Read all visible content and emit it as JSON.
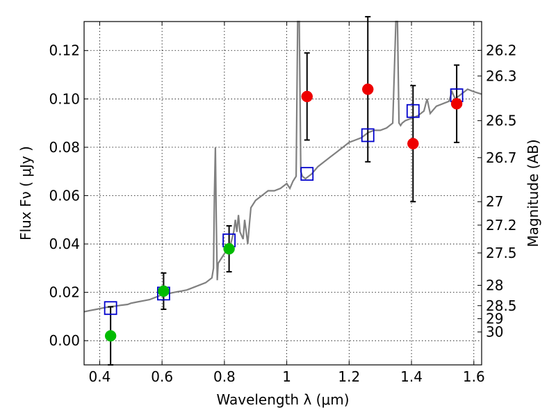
{
  "chart_data": {
    "type": "scatter",
    "xlabel": "Wavelength  λ (μm)",
    "ylabel": "Flux  Fν  ( μJy )",
    "ylabel_right": "Magnitude (AB)",
    "xlim": [
      0.35,
      1.625
    ],
    "ylim": [
      -0.01,
      0.132
    ],
    "grid": true,
    "x_ticks": [
      0.4,
      0.6,
      0.8,
      1.0,
      1.2,
      1.4,
      1.6
    ],
    "x_tick_labels": [
      "0.4",
      "0.6",
      "0.8",
      "1",
      "1.2",
      "1.4",
      "1.6"
    ],
    "y_ticks": [
      0.0,
      0.02,
      0.04,
      0.06,
      0.08,
      0.1,
      0.12
    ],
    "y_tick_labels": [
      "0.00",
      "0.02",
      "0.04",
      "0.06",
      "0.08",
      "0.10",
      "0.12"
    ],
    "right_ticks": [
      {
        "label": "26.2",
        "flux": 0.1201
      },
      {
        "label": "26.3",
        "flux": 0.1095
      },
      {
        "label": "26.5",
        "flux": 0.091
      },
      {
        "label": "26.7",
        "flux": 0.0757
      },
      {
        "label": "27",
        "flux": 0.0575
      },
      {
        "label": "27.2",
        "flux": 0.0478
      },
      {
        "label": "27.5",
        "flux": 0.0363
      },
      {
        "label": "28",
        "flux": 0.0229
      },
      {
        "label": "28.5",
        "flux": 0.0145
      },
      {
        "label": "29",
        "flux": 0.0091
      },
      {
        "label": "30",
        "flux": 0.0036
      }
    ],
    "series": [
      {
        "kind": "spectrum",
        "color": "#808080",
        "x": [
          0.35,
          0.37,
          0.39,
          0.41,
          0.43,
          0.45,
          0.47,
          0.49,
          0.5,
          0.52,
          0.54,
          0.56,
          0.58,
          0.6,
          0.62,
          0.64,
          0.66,
          0.68,
          0.7,
          0.72,
          0.74,
          0.76,
          0.765,
          0.768,
          0.771,
          0.774,
          0.777,
          0.78,
          0.79,
          0.8,
          0.81,
          0.82,
          0.83,
          0.835,
          0.84,
          0.845,
          0.85,
          0.86,
          0.865,
          0.87,
          0.875,
          0.88,
          0.885,
          0.9,
          0.92,
          0.94,
          0.96,
          0.98,
          1.0,
          1.01,
          1.02,
          1.03,
          1.035,
          1.04,
          1.045,
          1.05,
          1.06,
          1.08,
          1.1,
          1.12,
          1.14,
          1.16,
          1.18,
          1.2,
          1.22,
          1.24,
          1.26,
          1.28,
          1.3,
          1.32,
          1.34,
          1.35,
          1.355,
          1.36,
          1.365,
          1.37,
          1.38,
          1.4,
          1.42,
          1.44,
          1.45,
          1.46,
          1.48,
          1.5,
          1.52,
          1.53,
          1.54,
          1.56,
          1.58,
          1.6,
          1.625
        ],
        "y": [
          0.012,
          0.0125,
          0.013,
          0.0135,
          0.014,
          0.0143,
          0.0147,
          0.015,
          0.0155,
          0.016,
          0.0165,
          0.017,
          0.018,
          0.019,
          0.0195,
          0.02,
          0.0205,
          0.021,
          0.022,
          0.023,
          0.024,
          0.026,
          0.03,
          0.06,
          0.08,
          0.05,
          0.025,
          0.032,
          0.034,
          0.036,
          0.038,
          0.04,
          0.045,
          0.05,
          0.045,
          0.052,
          0.045,
          0.042,
          0.05,
          0.045,
          0.04,
          0.048,
          0.055,
          0.058,
          0.06,
          0.062,
          0.062,
          0.063,
          0.065,
          0.063,
          0.066,
          0.068,
          0.132,
          0.132,
          0.07,
          0.068,
          0.067,
          0.069,
          0.072,
          0.074,
          0.076,
          0.078,
          0.08,
          0.082,
          0.083,
          0.084,
          0.086,
          0.087,
          0.087,
          0.088,
          0.09,
          0.132,
          0.132,
          0.09,
          0.089,
          0.09,
          0.091,
          0.092,
          0.093,
          0.095,
          0.1,
          0.094,
          0.097,
          0.098,
          0.099,
          0.103,
          0.1,
          0.102,
          0.104,
          0.103,
          0.102
        ]
      },
      {
        "kind": "model-points",
        "marker": "open-square",
        "color": "#0000cc",
        "x": [
          0.435,
          0.605,
          0.815,
          1.065,
          1.26,
          1.405,
          1.545
        ],
        "y": [
          0.0135,
          0.0195,
          0.0415,
          0.069,
          0.085,
          0.095,
          0.1015
        ]
      },
      {
        "kind": "detections",
        "marker": "filled-circle",
        "color": "#00bb00",
        "x": [
          0.435,
          0.605,
          0.815
        ],
        "y": [
          0.002,
          0.0205,
          0.038
        ],
        "yerr": [
          0.012,
          0.0075,
          0.0095
        ]
      },
      {
        "kind": "detections",
        "marker": "filled-circle",
        "color": "#ee0000",
        "x": [
          1.065,
          1.26,
          1.405,
          1.545
        ],
        "y": [
          0.101,
          0.104,
          0.0815,
          0.098
        ],
        "yerr": [
          0.018,
          0.03,
          0.024,
          0.016
        ]
      }
    ]
  }
}
